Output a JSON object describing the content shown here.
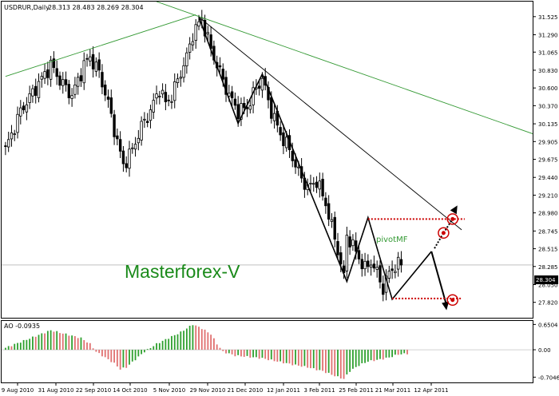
{
  "chart_data": [
    {
      "type": "candlestick",
      "symbol": "USDRUR,Daily",
      "ohlc_header": "28.313 28.483 28.269 28.304",
      "current_price": 28.304,
      "current_price_label": "28.304",
      "watermark": "Masterforex-V",
      "pivot_label": "pivotMF",
      "ylim": [
        27.62,
        31.72
      ],
      "y_ticks": [
        "31.525",
        "31.290",
        "31.065",
        "30.830",
        "30.600",
        "30.370",
        "30.135",
        "29.905",
        "29.675",
        "29.440",
        "29.210",
        "28.980",
        "28.745",
        "28.515",
        "28.285",
        "28.050",
        "27.820"
      ],
      "x_labels": [
        "9 Aug 2010",
        "31 Aug 2010",
        "22 Sep 2010",
        "14 Oct 2010",
        "5 Nov 2010",
        "29 Nov 2010",
        "21 Dec 2010",
        "12 Jan 2011",
        "3 Feb 2011",
        "25 Feb 2011",
        "21 Mar 2011",
        "12 Apr 2011"
      ],
      "close_path": [
        [
          0,
          29.8
        ],
        [
          5,
          30.3
        ],
        [
          10,
          30.6
        ],
        [
          15,
          30.9
        ],
        [
          18,
          30.7
        ],
        [
          22,
          30.5
        ],
        [
          26,
          30.9
        ],
        [
          28,
          31.0
        ],
        [
          31,
          30.8
        ],
        [
          34,
          30.4
        ],
        [
          37,
          29.9
        ],
        [
          39,
          29.6
        ],
        [
          42,
          29.8
        ],
        [
          45,
          30.1
        ],
        [
          48,
          30.3
        ],
        [
          51,
          30.6
        ],
        [
          53,
          30.4
        ],
        [
          55,
          30.5
        ],
        [
          58,
          30.8
        ],
        [
          60,
          31.0
        ],
        [
          62,
          31.3
        ],
        [
          65,
          31.5
        ],
        [
          68,
          31.1
        ],
        [
          71,
          30.8
        ],
        [
          74,
          30.5
        ],
        [
          77,
          30.3
        ],
        [
          80,
          30.35
        ],
        [
          83,
          30.6
        ],
        [
          85,
          30.72
        ],
        [
          88,
          30.3
        ],
        [
          91,
          30.0
        ],
        [
          94,
          29.8
        ],
        [
          97,
          29.5
        ],
        [
          100,
          29.3
        ],
        [
          103,
          29.4
        ],
        [
          106,
          29.1
        ],
        [
          108,
          28.8
        ],
        [
          110,
          28.5
        ],
        [
          111,
          28.3
        ],
        [
          112,
          28.15
        ],
        [
          113,
          28.7
        ],
        [
          115,
          28.55
        ],
        [
          117,
          28.4
        ],
        [
          119,
          28.25
        ],
        [
          121,
          28.35
        ],
        [
          123,
          28.2
        ],
        [
          125,
          28.0
        ],
        [
          127,
          28.2
        ],
        [
          129,
          28.3
        ],
        [
          131,
          28.304
        ]
      ],
      "trendlines": [
        {
          "name": "green-uptrend",
          "color": "#339933",
          "points": [
            [
              0,
              30.75
            ],
            [
              63,
              31.55
            ]
          ]
        },
        {
          "name": "green-downtrend",
          "color": "#339933",
          "points": [
            [
              50,
              31.72
            ],
            [
              175,
              30.0
            ]
          ]
        },
        {
          "name": "black-resistance",
          "color": "#000000",
          "points": [
            [
              64,
              31.52
            ],
            [
              151,
              28.76
            ]
          ]
        }
      ],
      "zigzag": [
        [
          64,
          31.52
        ],
        [
          77,
          30.14
        ],
        [
          85,
          30.78
        ],
        [
          113,
          28.09
        ],
        [
          120,
          28.92
        ],
        [
          128,
          27.86
        ],
        [
          141,
          28.48
        ],
        [
          146,
          27.78
        ]
      ],
      "levels": [
        {
          "name": "pivot-level",
          "color": "#cc0000",
          "y": 28.9,
          "x_range": [
            120,
            152
          ]
        },
        {
          "name": "support-level",
          "color": "#cc0000",
          "y": 27.87,
          "x_range": [
            128,
            151
          ]
        }
      ],
      "markers": [
        {
          "name": "upper-target-circle",
          "x": 148,
          "y": 28.9
        },
        {
          "name": "middle-target-circle",
          "x": 145,
          "y": 28.72
        },
        {
          "name": "lower-target-circle",
          "x": 148,
          "y": 27.85
        }
      ]
    },
    {
      "type": "bar",
      "name": "AO -0.0935",
      "label": "AO -0.0935",
      "ylim": [
        -0.84,
        0.74
      ],
      "y_ticks": [
        "0.6504",
        "0.00",
        "-0.7046"
      ],
      "ao_path": [
        [
          0,
          0.05
        ],
        [
          5,
          0.2
        ],
        [
          10,
          0.35
        ],
        [
          15,
          0.5
        ],
        [
          20,
          0.4
        ],
        [
          25,
          0.3
        ],
        [
          28,
          0.15
        ],
        [
          30,
          -0.05
        ],
        [
          33,
          -0.2
        ],
        [
          36,
          -0.35
        ],
        [
          38,
          -0.5
        ],
        [
          40,
          -0.45
        ],
        [
          43,
          -0.25
        ],
        [
          46,
          -0.05
        ],
        [
          50,
          0.15
        ],
        [
          54,
          0.3
        ],
        [
          58,
          0.45
        ],
        [
          62,
          0.65
        ],
        [
          65,
          0.55
        ],
        [
          68,
          0.4
        ],
        [
          70,
          0.15
        ],
        [
          72,
          -0.05
        ],
        [
          76,
          -0.15
        ],
        [
          80,
          -0.18
        ],
        [
          85,
          -0.22
        ],
        [
          90,
          -0.3
        ],
        [
          95,
          -0.38
        ],
        [
          100,
          -0.45
        ],
        [
          105,
          -0.55
        ],
        [
          110,
          -0.7
        ],
        [
          112,
          -0.75
        ],
        [
          114,
          -0.55
        ],
        [
          117,
          -0.4
        ],
        [
          120,
          -0.3
        ],
        [
          124,
          -0.25
        ],
        [
          127,
          -0.2
        ],
        [
          130,
          -0.12
        ],
        [
          133,
          -0.1
        ]
      ]
    }
  ]
}
